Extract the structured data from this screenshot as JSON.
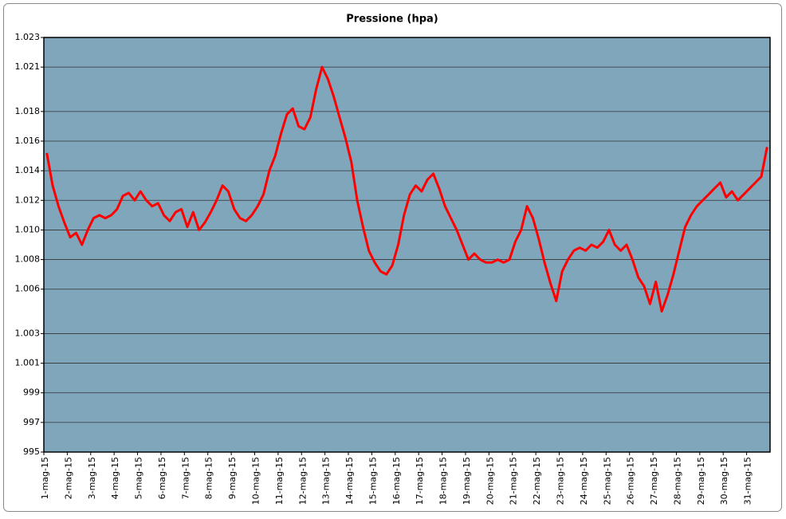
{
  "chart_data": {
    "type": "line",
    "title": "Pressione (hpa)",
    "categories": [
      "1-mag-15",
      null,
      null,
      null,
      "2-mag-15",
      null,
      null,
      null,
      "3-mag-15",
      null,
      null,
      null,
      "4-mag-15",
      null,
      null,
      null,
      "5-mag-15",
      null,
      null,
      null,
      "6-mag-15",
      null,
      null,
      null,
      "7-mag-15",
      null,
      null,
      null,
      "8-mag-15",
      null,
      null,
      null,
      "9-mag-15",
      null,
      null,
      null,
      "10-mag-15",
      null,
      null,
      null,
      "11-mag-15",
      null,
      null,
      null,
      "12-mag-15",
      null,
      null,
      null,
      "13-mag-15",
      null,
      null,
      null,
      "14-mag-15",
      null,
      null,
      null,
      "15-mag-15",
      null,
      null,
      null,
      "16-mag-15",
      null,
      null,
      null,
      "17-mag-15",
      null,
      null,
      null,
      "18-mag-15",
      null,
      null,
      null,
      "19-mag-15",
      null,
      null,
      null,
      "20-mag-15",
      null,
      null,
      null,
      "21-mag-15",
      null,
      null,
      null,
      "22-mag-15",
      null,
      null,
      null,
      "23-mag-15",
      null,
      null,
      null,
      "24-mag-15",
      null,
      null,
      null,
      "25-mag-15",
      null,
      null,
      null,
      "26-mag-15",
      null,
      null,
      null,
      "27-mag-15",
      null,
      null,
      null,
      "28-mag-15",
      null,
      null,
      null,
      "29-mag-15",
      null,
      null,
      null,
      "30-mag-15",
      null,
      null,
      null,
      "31-mag-15",
      null,
      null,
      null
    ],
    "values": [
      1015.2,
      1013.0,
      1011.6,
      1010.5,
      1009.5,
      1009.8,
      1009.0,
      1010.0,
      1010.8,
      1011.0,
      1010.8,
      1011.0,
      1011.4,
      1012.3,
      1012.5,
      1012.0,
      1012.6,
      1012.0,
      1011.6,
      1011.8,
      1011.0,
      1010.6,
      1011.2,
      1011.4,
      1010.2,
      1011.2,
      1010.0,
      1010.5,
      1011.2,
      1012.0,
      1013.0,
      1012.6,
      1011.4,
      1010.8,
      1010.6,
      1011.0,
      1011.6,
      1012.4,
      1014.0,
      1015.0,
      1016.5,
      1017.8,
      1018.2,
      1017.0,
      1016.8,
      1017.6,
      1019.5,
      1021.0,
      1020.2,
      1019.0,
      1017.6,
      1016.2,
      1014.6,
      1012.0,
      1010.2,
      1008.6,
      1007.8,
      1007.2,
      1007.0,
      1007.6,
      1009.0,
      1011.0,
      1012.4,
      1013.0,
      1012.6,
      1013.4,
      1013.8,
      1012.8,
      1011.6,
      1010.8,
      1010.0,
      1009.0,
      1008.0,
      1008.4,
      1008.0,
      1007.8,
      1007.8,
      1008.0,
      1007.8,
      1008.0,
      1009.2,
      1010.0,
      1011.6,
      1010.8,
      1009.4,
      1007.8,
      1006.4,
      1005.2,
      1007.2,
      1008.0,
      1008.6,
      1008.8,
      1008.6,
      1009.0,
      1008.8,
      1009.2,
      1010.0,
      1009.0,
      1008.6,
      1009.0,
      1008.0,
      1006.8,
      1006.2,
      1005.0,
      1006.5,
      1004.5,
      1005.6,
      1007.0,
      1008.6,
      1010.2,
      1011.0,
      1011.6,
      1012.0,
      1012.4,
      1012.8,
      1013.2,
      1012.2,
      1012.6,
      1012.0,
      1012.4,
      1012.8,
      1013.2,
      1013.6,
      1015.6
    ],
    "color": "#ff0000",
    "plot_color": "#7fa6bb",
    "ylim": [
      995,
      1023
    ],
    "yticks": [
      995,
      997,
      999,
      {
        "value": 1001,
        "label": "1.001"
      },
      {
        "value": 1003,
        "label": "1.003"
      },
      {
        "value": 1006,
        "label": "1.006"
      },
      {
        "value": 1008,
        "label": "1.008"
      },
      {
        "value": 1010,
        "label": "1.010"
      },
      {
        "value": 1012,
        "label": "1.012"
      },
      {
        "value": 1014,
        "label": "1.014"
      },
      {
        "value": 1016,
        "label": "1.016"
      },
      {
        "value": 1018,
        "label": "1.018"
      },
      {
        "value": 1021,
        "label": "1.021"
      },
      {
        "value": 1023,
        "label": "1.023"
      }
    ],
    "grid": true
  }
}
